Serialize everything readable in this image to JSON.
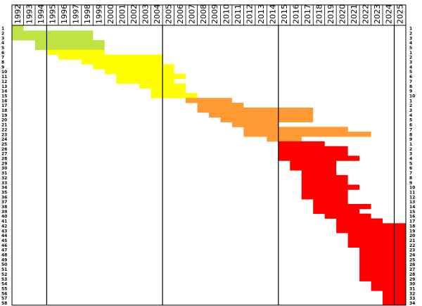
{
  "chart_data": {
    "type": "bar",
    "orientation": "horizontal",
    "stacked": false,
    "title": "",
    "xlabel": "",
    "ylabel": "",
    "x_categories": [
      "1992",
      "1993",
      "1994",
      "1995",
      "1996",
      "1997",
      "1998",
      "1999",
      "2000",
      "2001",
      "2002",
      "2003",
      "2004",
      "2005",
      "2006",
      "2007",
      "2008",
      "2009",
      "2010",
      "2011",
      "2012",
      "2013",
      "2014",
      "2015",
      "2016",
      "2017",
      "2018",
      "2019",
      "2020",
      "2021",
      "2022",
      "2023",
      "2024",
      "2025"
    ],
    "row_labels_left": [
      "1",
      "2",
      "3",
      "4",
      "5",
      "6",
      "7",
      "8",
      "9",
      "10",
      "11",
      "12",
      "13",
      "14",
      "15",
      "16",
      "17",
      "18",
      "19",
      "20",
      "21",
      "22",
      "23",
      "24",
      "25",
      "26",
      "27",
      "28",
      "29",
      "30",
      "31",
      "32",
      "33",
      "34",
      "35",
      "36",
      "37",
      "38",
      "39",
      "40",
      "41",
      "42",
      "43",
      "44",
      "45",
      "46",
      "47",
      "48",
      "49",
      "50",
      "51",
      "52",
      "53",
      "54",
      "55",
      "56",
      "57",
      "58"
    ],
    "row_labels_right": [
      "1",
      "2",
      "3",
      "4",
      "5",
      "1",
      "2",
      "3",
      "4",
      "5",
      "6",
      "7",
      "8",
      "9",
      "10",
      "1",
      "2",
      "3",
      "4",
      "5",
      "6",
      "7",
      "8",
      "9",
      "1",
      "2",
      "3",
      "4",
      "5",
      "6",
      "7",
      "8",
      "9",
      "10",
      "11",
      "12",
      "13",
      "14",
      "15",
      "16",
      "17",
      "18",
      "19",
      "20",
      "21",
      "22",
      "23",
      "24",
      "25",
      "26",
      "27",
      "28",
      "29",
      "30",
      "31",
      "32",
      "33",
      "34"
    ],
    "group_colors": [
      "#bfe342",
      "#ffff00",
      "#ff9933",
      "#ff0000"
    ],
    "divider_years": [
      1995,
      2005,
      2015,
      2025
    ],
    "grid": false,
    "bars": [
      {
        "start": 1992,
        "end": 1993,
        "group": 0
      },
      {
        "start": 1992,
        "end": 1999,
        "group": 0
      },
      {
        "start": 1992,
        "end": 1999,
        "group": 0
      },
      {
        "start": 1994,
        "end": 2000,
        "group": 0
      },
      {
        "start": 1994,
        "end": 2000,
        "group": 0
      },
      {
        "start": 1995,
        "end": 2000,
        "group": 1
      },
      {
        "start": 1996,
        "end": 2005,
        "group": 1
      },
      {
        "start": 1998,
        "end": 2005,
        "group": 1
      },
      {
        "start": 1999,
        "end": 2006,
        "group": 1
      },
      {
        "start": 2000,
        "end": 2006,
        "group": 1
      },
      {
        "start": 2001,
        "end": 2007,
        "group": 1
      },
      {
        "start": 2001,
        "end": 2006,
        "group": 1
      },
      {
        "start": 2003,
        "end": 2007,
        "group": 1
      },
      {
        "start": 2004,
        "end": 2007,
        "group": 1
      },
      {
        "start": 2004,
        "end": 2008,
        "group": 1
      },
      {
        "start": 2007,
        "end": 2011,
        "group": 2
      },
      {
        "start": 2008,
        "end": 2012,
        "group": 2
      },
      {
        "start": 2008,
        "end": 2018,
        "group": 2
      },
      {
        "start": 2009,
        "end": 2018,
        "group": 2
      },
      {
        "start": 2010,
        "end": 2018,
        "group": 2
      },
      {
        "start": 2011,
        "end": 2015,
        "group": 2
      },
      {
        "start": 2012,
        "end": 2021,
        "group": 2
      },
      {
        "start": 2012,
        "end": 2023,
        "group": 2
      },
      {
        "start": 2014,
        "end": 2017,
        "group": 2
      },
      {
        "start": 2015,
        "end": 2019,
        "group": 3
      },
      {
        "start": 2015,
        "end": 2021,
        "group": 3
      },
      {
        "start": 2015,
        "end": 2021,
        "group": 3
      },
      {
        "start": 2015,
        "end": 2022,
        "group": 3
      },
      {
        "start": 2016,
        "end": 2020,
        "group": 3
      },
      {
        "start": 2016,
        "end": 2020,
        "group": 3
      },
      {
        "start": 2017,
        "end": 2020,
        "group": 3
      },
      {
        "start": 2017,
        "end": 2021,
        "group": 3
      },
      {
        "start": 2017,
        "end": 2021,
        "group": 3
      },
      {
        "start": 2017,
        "end": 2022,
        "group": 3
      },
      {
        "start": 2017,
        "end": 2021,
        "group": 3
      },
      {
        "start": 2017,
        "end": 2021,
        "group": 3
      },
      {
        "start": 2018,
        "end": 2021,
        "group": 3
      },
      {
        "start": 2018,
        "end": 2023,
        "group": 3
      },
      {
        "start": 2018,
        "end": 2022,
        "group": 3
      },
      {
        "start": 2019,
        "end": 2023,
        "group": 3
      },
      {
        "start": 2020,
        "end": 2024,
        "group": 3
      },
      {
        "start": 2020,
        "end": 2026,
        "group": 3
      },
      {
        "start": 2020,
        "end": 2026,
        "group": 3
      },
      {
        "start": 2021,
        "end": 2026,
        "group": 3
      },
      {
        "start": 2021,
        "end": 2026,
        "group": 3
      },
      {
        "start": 2021,
        "end": 2026,
        "group": 3
      },
      {
        "start": 2022,
        "end": 2026,
        "group": 3
      },
      {
        "start": 2022,
        "end": 2026,
        "group": 3
      },
      {
        "start": 2022,
        "end": 2026,
        "group": 3
      },
      {
        "start": 2022,
        "end": 2026,
        "group": 3
      },
      {
        "start": 2022,
        "end": 2026,
        "group": 3
      },
      {
        "start": 2022,
        "end": 2026,
        "group": 3
      },
      {
        "start": 2022,
        "end": 2026,
        "group": 3
      },
      {
        "start": 2023,
        "end": 2026,
        "group": 3
      },
      {
        "start": 2023,
        "end": 2026,
        "group": 3
      },
      {
        "start": 2024,
        "end": 2026,
        "group": 3
      },
      {
        "start": 2024,
        "end": 2026,
        "group": 3
      },
      {
        "start": 2024,
        "end": 2026,
        "group": 3
      }
    ]
  }
}
